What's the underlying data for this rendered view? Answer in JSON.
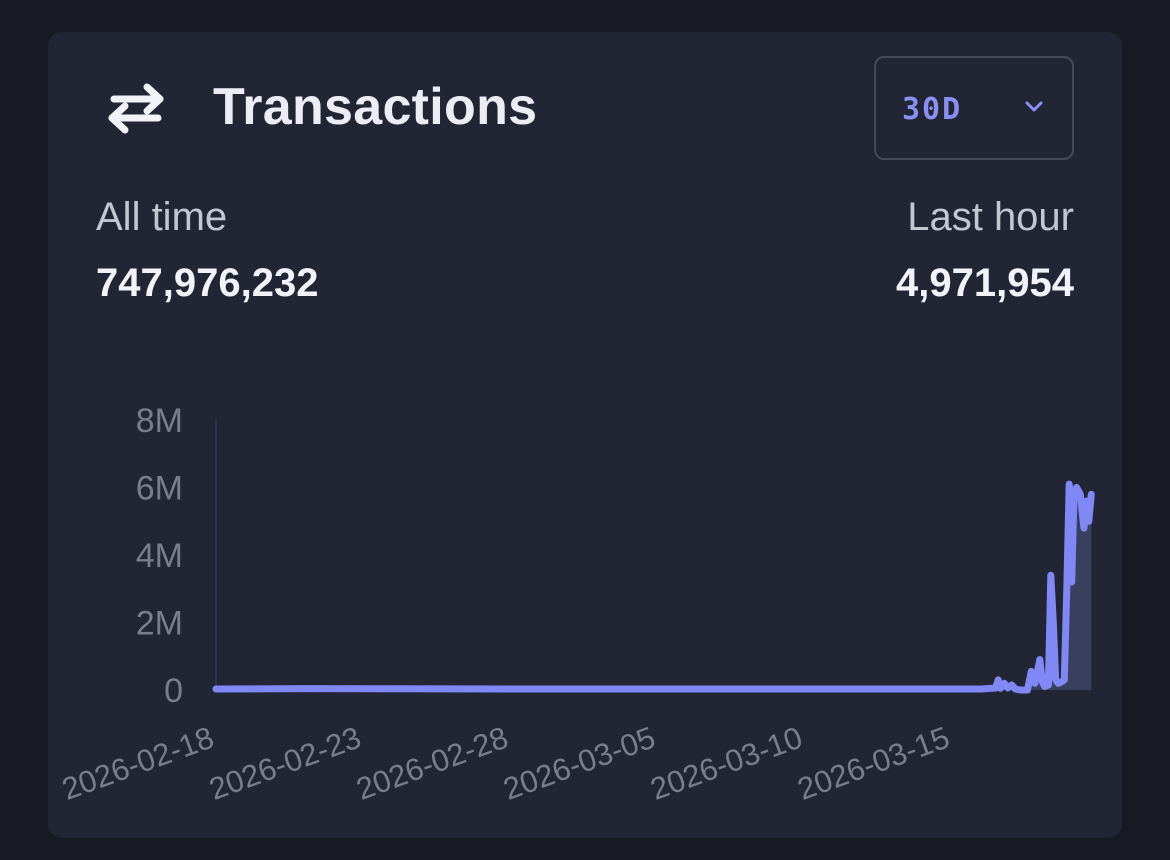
{
  "header": {
    "title": "Transactions",
    "icon": "swap-arrows-icon",
    "range_select": {
      "value": "30D",
      "icon": "chevron-down-icon"
    }
  },
  "stats": {
    "all_time": {
      "label": "All time",
      "value": "747,976,232"
    },
    "last_hour": {
      "label": "Last hour",
      "value": "4,971,954"
    }
  },
  "colors": {
    "background": "#181a23",
    "card": "#222533",
    "accent": "#8890f2",
    "line": "#7f88f5",
    "area": "#3a3f5e"
  },
  "chart_data": {
    "type": "area",
    "title": "",
    "xlabel": "",
    "ylabel": "",
    "ylim": [
      0,
      8000000
    ],
    "xlim": [
      "2026-02-18",
      "2026-03-20T06:00"
    ],
    "y_ticks": [
      {
        "value": 0,
        "label": "0"
      },
      {
        "value": 2000000,
        "label": "2M"
      },
      {
        "value": 4000000,
        "label": "4M"
      },
      {
        "value": 6000000,
        "label": "6M"
      },
      {
        "value": 8000000,
        "label": "8M"
      }
    ],
    "x_ticks": [
      "2026-02-18",
      "2026-02-23",
      "2026-02-28",
      "2026-03-05",
      "2026-03-10",
      "2026-03-15"
    ],
    "grid": false,
    "series": [
      {
        "points": [
          [
            "2026-02-18T00:00",
            30000
          ],
          [
            "2026-02-21T00:00",
            40000
          ],
          [
            "2026-02-24T00:00",
            35000
          ],
          [
            "2026-02-28T00:00",
            30000
          ],
          [
            "2026-03-05T00:00",
            30000
          ],
          [
            "2026-03-10T00:00",
            30000
          ],
          [
            "2026-03-14T00:00",
            30000
          ],
          [
            "2026-03-16T00:00",
            30000
          ],
          [
            "2026-03-16T12:00",
            60000
          ],
          [
            "2026-03-16T14:00",
            300000
          ],
          [
            "2026-03-16T16:00",
            50000
          ],
          [
            "2026-03-16T19:00",
            200000
          ],
          [
            "2026-03-16T22:00",
            60000
          ],
          [
            "2026-03-17T01:00",
            150000
          ],
          [
            "2026-03-17T04:00",
            30000
          ],
          [
            "2026-03-17T08:00",
            0
          ],
          [
            "2026-03-17T14:00",
            0
          ],
          [
            "2026-03-17T17:00",
            550000
          ],
          [
            "2026-03-17T20:00",
            200000
          ],
          [
            "2026-03-18T00:00",
            900000
          ],
          [
            "2026-03-18T02:00",
            250000
          ],
          [
            "2026-03-18T04:00",
            100000
          ],
          [
            "2026-03-18T07:00",
            150000
          ],
          [
            "2026-03-18T09:00",
            3400000
          ],
          [
            "2026-03-18T11:00",
            2000000
          ],
          [
            "2026-03-18T13:00",
            300000
          ],
          [
            "2026-03-18T15:00",
            200000
          ],
          [
            "2026-03-18T18:00",
            250000
          ],
          [
            "2026-03-18T20:00",
            300000
          ],
          [
            "2026-03-18T22:00",
            3000000
          ],
          [
            "2026-03-19T00:00",
            6100000
          ],
          [
            "2026-03-19T02:00",
            3200000
          ],
          [
            "2026-03-19T04:00",
            5900000
          ],
          [
            "2026-03-19T06:00",
            6000000
          ],
          [
            "2026-03-19T09:00",
            5800000
          ],
          [
            "2026-03-19T12:00",
            4800000
          ],
          [
            "2026-03-19T14:00",
            5600000
          ],
          [
            "2026-03-19T16:00",
            5000000
          ],
          [
            "2026-03-19T18:00",
            5800000
          ]
        ]
      }
    ]
  }
}
